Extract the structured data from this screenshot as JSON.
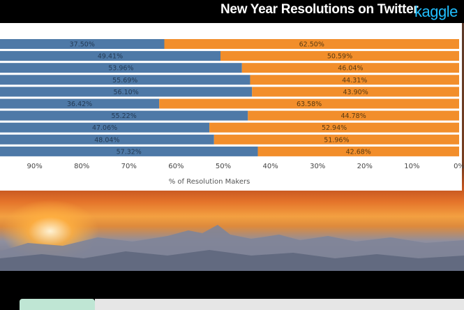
{
  "header": {
    "title": "New Year Resolutions on Twitter",
    "brand": "kaggle"
  },
  "chart_data": {
    "type": "bar",
    "orientation": "horizontal",
    "stacked": true,
    "x_reversed": true,
    "xlabel": "% of Resolution Makers",
    "xlim": [
      0,
      100
    ],
    "ticks": [
      "90%",
      "80%",
      "70%",
      "60%",
      "50%",
      "40%",
      "30%",
      "20%",
      "10%",
      "0%"
    ],
    "grid": false,
    "series": [
      {
        "color": "#4e79a7",
        "values": [
          37.5,
          49.41,
          53.96,
          55.69,
          56.1,
          36.42,
          55.22,
          47.06,
          48.04,
          57.32
        ],
        "labels": [
          "37.50%",
          "49.41%",
          "53.96%",
          "55.69%",
          "56.10%",
          "36.42%",
          "55.22%",
          "47.06%",
          "48.04%",
          "57.32%"
        ]
      },
      {
        "color": "#f28e2b",
        "values": [
          62.5,
          50.59,
          46.04,
          44.31,
          43.9,
          63.58,
          44.78,
          52.94,
          51.96,
          42.68
        ],
        "labels": [
          "62.50%",
          "50.59%",
          "46.04%",
          "44.31%",
          "43.90%",
          "63.58%",
          "44.78%",
          "52.94%",
          "51.96%",
          "42.68%"
        ]
      }
    ]
  }
}
